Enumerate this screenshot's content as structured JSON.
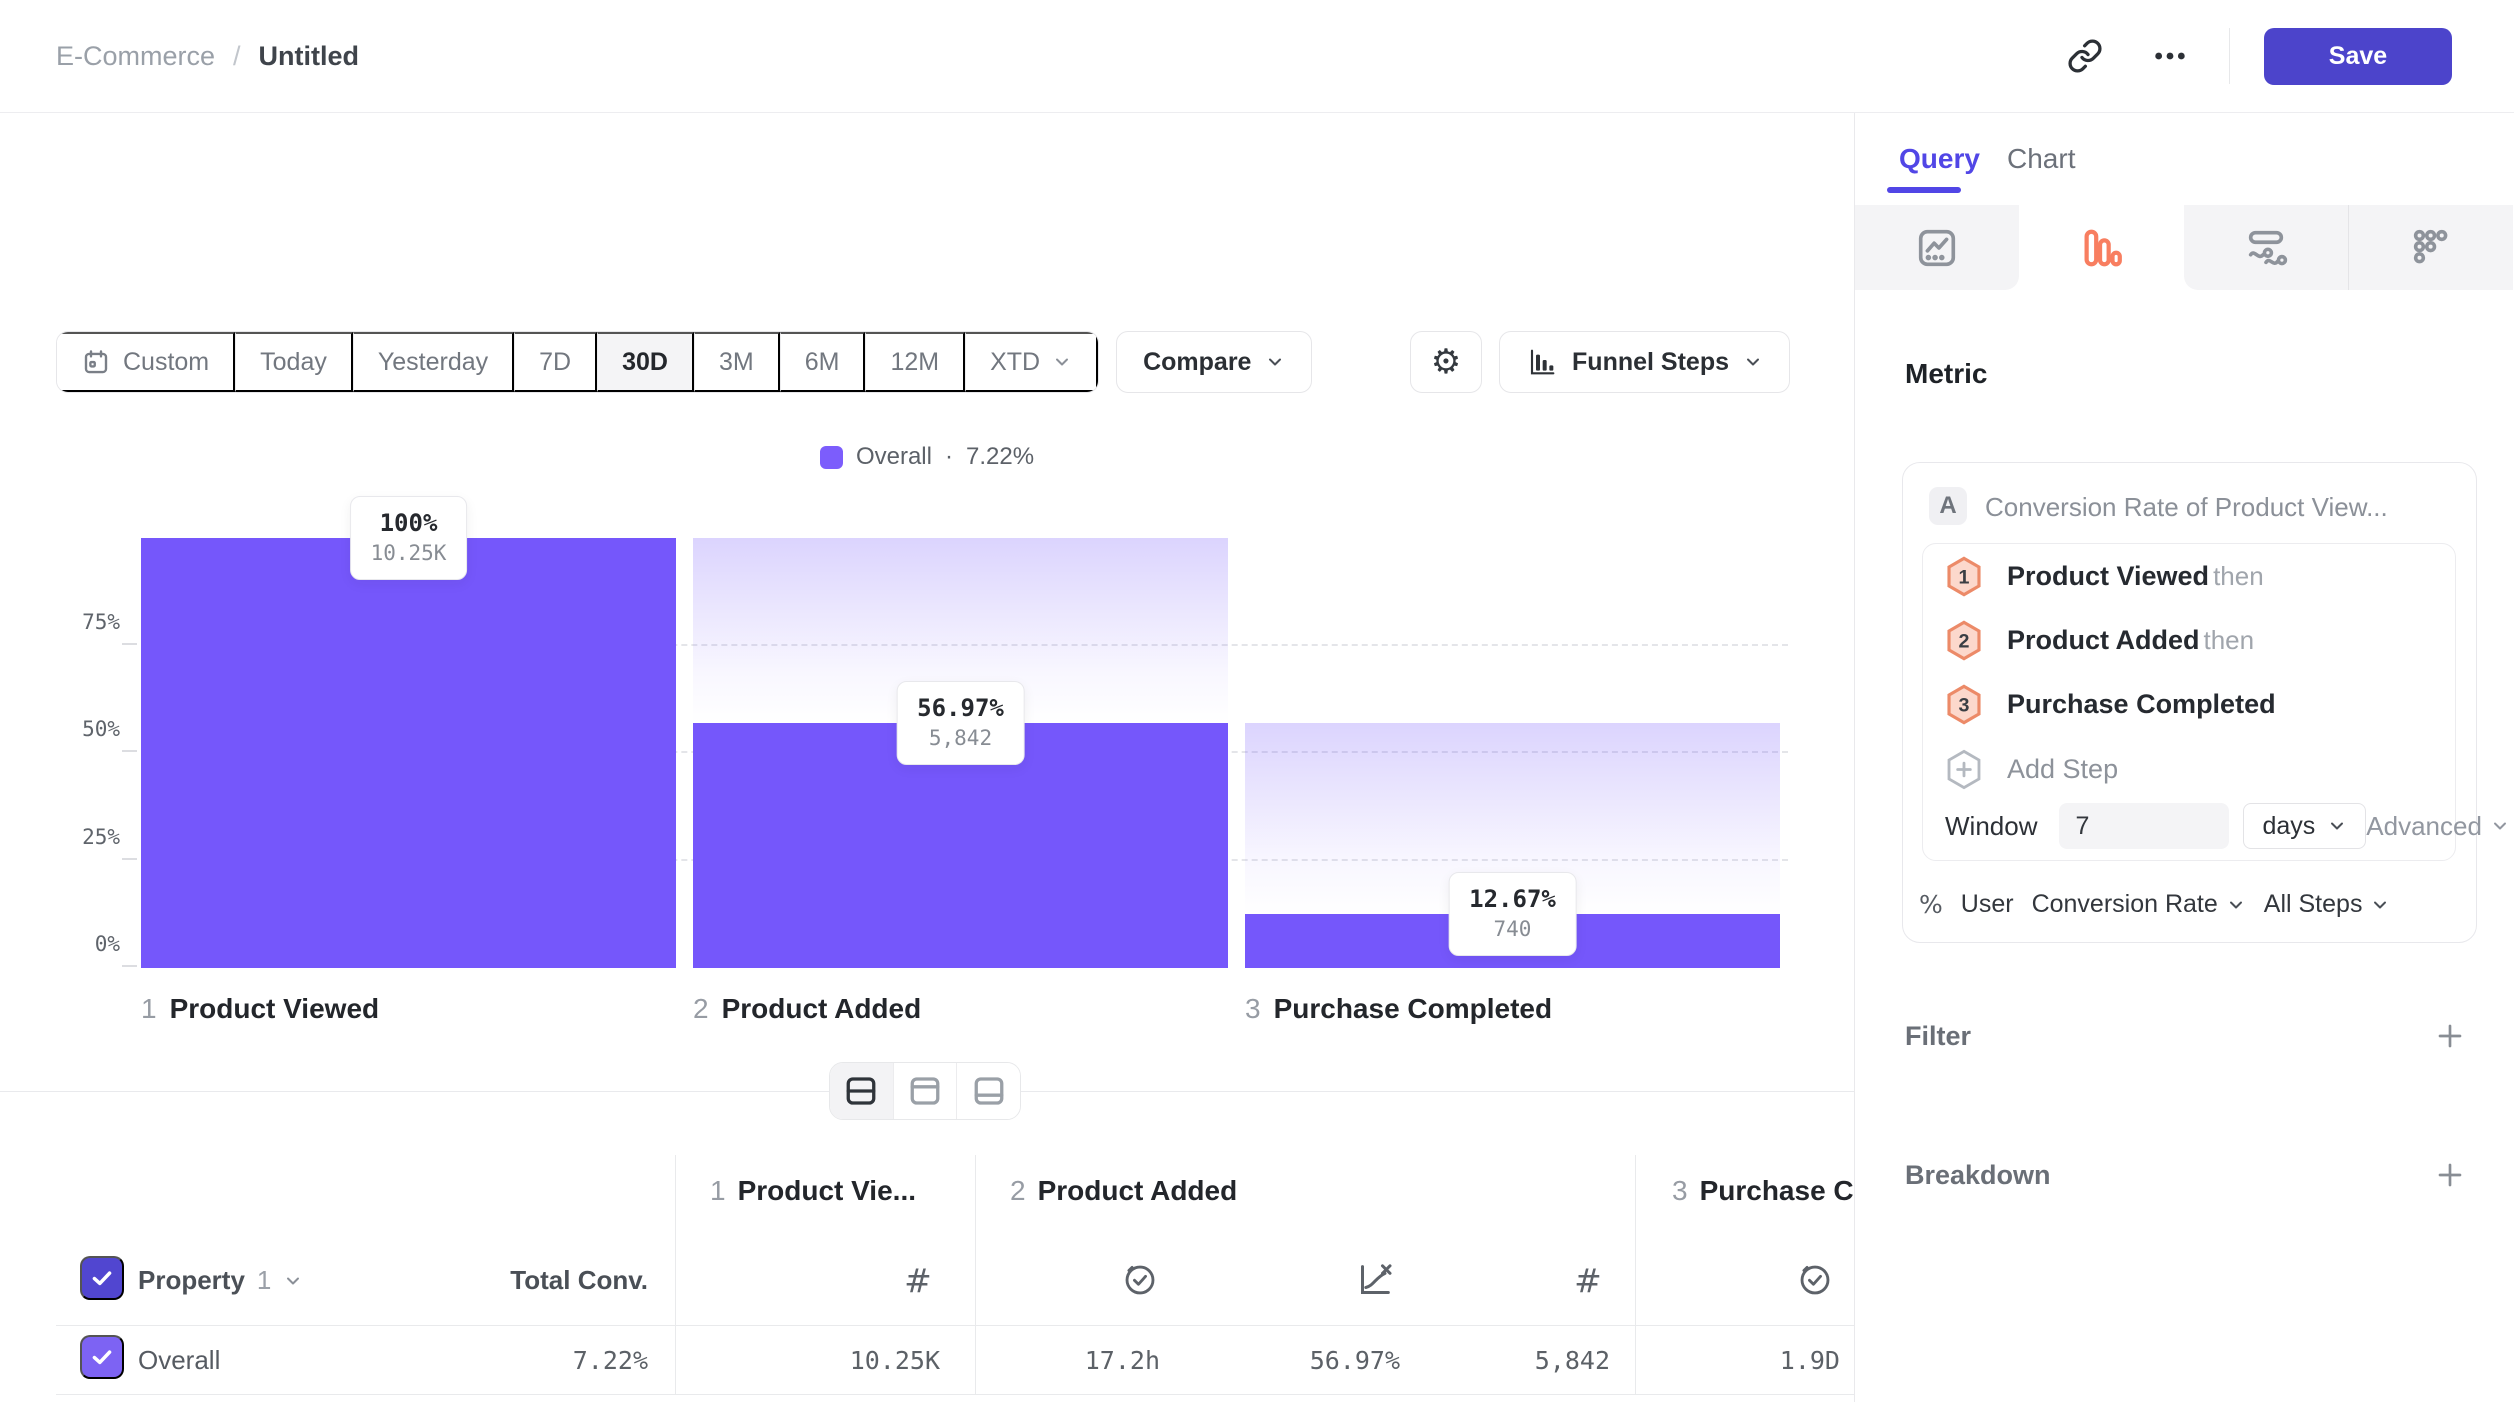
{
  "header": {
    "breadcrumb": {
      "parent": "E-Commerce",
      "separator": "/",
      "current": "Untitled"
    },
    "save_label": "Save"
  },
  "toolbar": {
    "ranges": [
      "Custom",
      "Today",
      "Yesterday",
      "7D",
      "30D",
      "3M",
      "6M",
      "12M",
      "XTD"
    ],
    "active_range": "30D",
    "compare_label": "Compare",
    "chart_type_label": "Funnel Steps"
  },
  "legend": {
    "series": "Overall",
    "separator": "·",
    "value": "7.22%"
  },
  "chart_data": {
    "type": "funnel",
    "series": "Overall",
    "overall_conversion_pct": 7.22,
    "y_ticks": [
      "75%",
      "50%",
      "25%",
      "0%"
    ],
    "ylim": [
      0,
      100
    ],
    "grid": "dashed horizontal at 25/50/75",
    "bar_color": "#7557fb",
    "steps": [
      {
        "index": "1",
        "label": "Product Viewed",
        "pct": 100,
        "pct_label": "100%",
        "count": 10250,
        "count_label": "10.25K"
      },
      {
        "index": "2",
        "label": "Product Added",
        "pct": 56.97,
        "pct_label": "56.97%",
        "count": 5842,
        "count_label": "5,842"
      },
      {
        "index": "3",
        "label": "Purchase Completed",
        "pct": 12.67,
        "pct_label": "12.67%",
        "count": 740,
        "count_label": "740"
      }
    ]
  },
  "layout_toggle": {
    "options": [
      "split-horizontal",
      "panel-top",
      "panel-bottom"
    ],
    "active": "split-horizontal"
  },
  "table": {
    "property_header": {
      "label": "Property",
      "index": "1"
    },
    "total_header": "Total Conv.",
    "groups": [
      {
        "index": "1",
        "label": "Product Vie...",
        "column_icons": [
          "count"
        ]
      },
      {
        "index": "2",
        "label": "Product Added",
        "column_icons": [
          "avg-time",
          "conversion",
          "count"
        ]
      },
      {
        "index": "3",
        "label": "Purchase Completed",
        "column_icons": [
          "avg-time"
        ]
      }
    ],
    "row": {
      "label": "Overall",
      "total": "7.22%",
      "values": [
        "10.25K",
        "17.2h",
        "56.97%",
        "5,842",
        "1.9D"
      ]
    }
  },
  "panel": {
    "tabs": [
      {
        "label": "Query"
      },
      {
        "label": "Chart"
      }
    ],
    "active_tab": "Query",
    "icon_tabs": [
      "line-chart",
      "funnel",
      "flows",
      "grid"
    ],
    "active_icon_tab": "funnel",
    "accent_color": "#5146e6",
    "funnel_icon_color": "#f87e60",
    "metric": {
      "heading": "Metric",
      "badge": "A",
      "title": "Conversion Rate of Product View...",
      "steps": [
        {
          "n": "1",
          "label": "Product Viewed",
          "suffix": "then"
        },
        {
          "n": "2",
          "label": "Product Added",
          "suffix": "then"
        },
        {
          "n": "3",
          "label": "Purchase Completed",
          "suffix": ""
        }
      ],
      "add_step": "Add Step",
      "window": {
        "label": "Window",
        "value": "7",
        "unit": "days",
        "advanced": "Advanced"
      },
      "footer": {
        "symbol": "%",
        "entity": "User",
        "measure": "Conversion Rate",
        "scope": "All Steps"
      }
    },
    "filter": {
      "label": "Filter"
    },
    "breakdown": {
      "label": "Breakdown"
    }
  }
}
